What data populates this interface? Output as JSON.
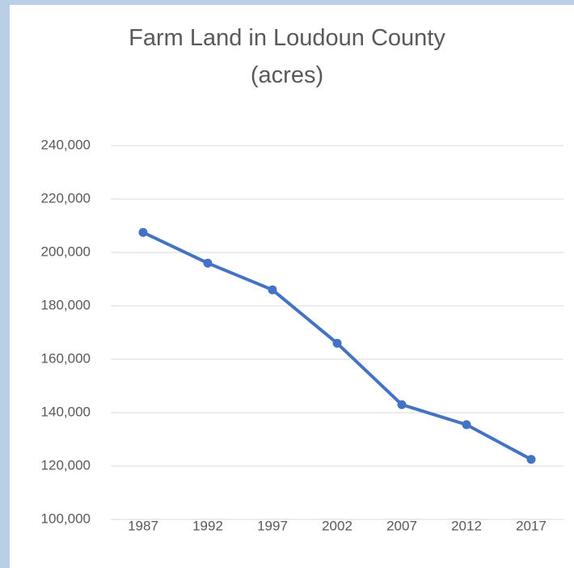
{
  "chart_data": {
    "type": "line",
    "title": "Farm Land in Loudoun County (acres)",
    "categories": [
      "1987",
      "1992",
      "1997",
      "2002",
      "2007",
      "2012",
      "2017"
    ],
    "series": [
      {
        "name": "Farm Land",
        "color": "#4472c4",
        "values": [
          207500,
          196000,
          186000,
          166000,
          143000,
          135500,
          122500
        ]
      }
    ],
    "ylim": [
      100000,
      240000
    ],
    "yticks": [
      {
        "value": 100000,
        "label": "100,000"
      },
      {
        "value": 120000,
        "label": "120,000"
      },
      {
        "value": 140000,
        "label": "140,000"
      },
      {
        "value": 160000,
        "label": "160,000"
      },
      {
        "value": 180000,
        "label": "180,000"
      },
      {
        "value": 200000,
        "label": "200,000"
      },
      {
        "value": 220000,
        "label": "220,000"
      },
      {
        "value": 240000,
        "label": "240,000"
      }
    ],
    "grid": true
  }
}
